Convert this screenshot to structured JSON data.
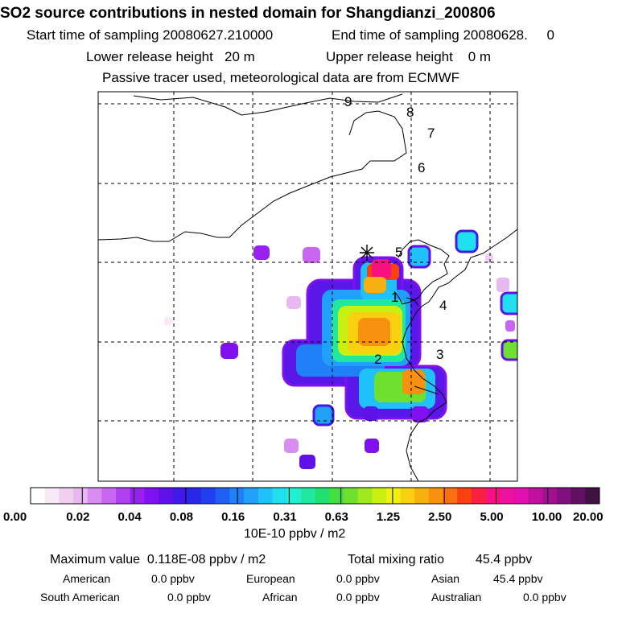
{
  "title": "SO2 source contributions in nested domain for Shangdianzi_200806",
  "start_label": "Start time of sampling 20080627.210000",
  "end_label": "End time of sampling 20080628.     0",
  "lower_release": "Lower release height   20 m",
  "upper_release": "Upper release height    0 m",
  "tracer_note": "Passive tracer used, meteorological data are from ECMWF",
  "chart_data": {
    "type": "heatmap",
    "title": "SO2 source contributions in nested domain for Shangdianzi_200806",
    "grid": true,
    "map_labels": [
      "1",
      "2",
      "3",
      "4",
      "5",
      "6",
      "7",
      "8",
      "9"
    ],
    "receptor_marker": "receptor-star",
    "colorbar": {
      "units": "10E-10 ppbv / m2",
      "tick_labels": [
        "0.00",
        "0.02",
        "0.04",
        "0.08",
        "0.16",
        "0.31",
        "0.63",
        "1.25",
        "2.50",
        "5.00",
        "10.00",
        "20.00"
      ],
      "colors": [
        "#ffffff",
        "#f8e8f8",
        "#f0d0f0",
        "#e8b8f0",
        "#d88ef0",
        "#c866f0",
        "#b040f0",
        "#9a20f0",
        "#8010f0",
        "#6010e8",
        "#4018e8",
        "#2828e8",
        "#2040f0",
        "#2060f0",
        "#2080f8",
        "#20a0f8",
        "#20c0f8",
        "#20e0f0",
        "#20f0d0",
        "#20e8a0",
        "#20e070",
        "#40e040",
        "#70e030",
        "#a0e820",
        "#c8f010",
        "#f0f010",
        "#f8d010",
        "#f8b010",
        "#f89010",
        "#f87010",
        "#f84010",
        "#f82040",
        "#f81080",
        "#f010a0",
        "#e010b0",
        "#c010a0",
        "#a01090",
        "#801080",
        "#601060",
        "#401040"
      ]
    },
    "max_value": "0.118E-08 ppbv / m2",
    "total_mixing_ratio": "45.4 ppbv"
  },
  "summary": {
    "max_label": "Maximum value  0.118E-08 ppbv / m2",
    "total_label": "Total mixing ratio",
    "total_value": "45.4 ppbv",
    "regions": {
      "american": {
        "name": "American",
        "value": "0.0 ppbv"
      },
      "european": {
        "name": "European",
        "value": "0.0 ppbv"
      },
      "asian": {
        "name": "Asian",
        "value": "45.4 ppbv"
      },
      "south_american": {
        "name": "South American",
        "value": "0.0 ppbv"
      },
      "african": {
        "name": "African",
        "value": "0.0 ppbv"
      },
      "australian": {
        "name": "Australian",
        "value": "0.0 ppbv"
      }
    }
  }
}
